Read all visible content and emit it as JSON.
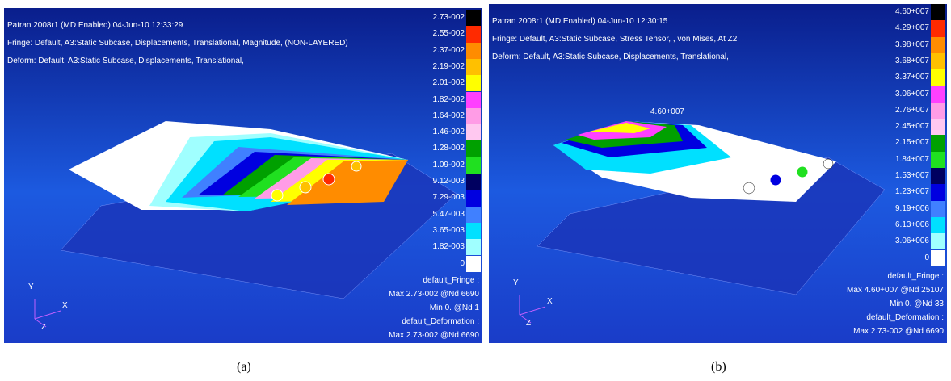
{
  "legend_colors": [
    "#000000",
    "#ff2a00",
    "#ff8c00",
    "#ffc000",
    "#ffff00",
    "#ff40ff",
    "#ff9ce6",
    "#ffc8f0",
    "#00a000",
    "#20e020",
    "#000060",
    "#0000e0",
    "#4080ff",
    "#00e0ff",
    "#a0ffff",
    "#ffffff"
  ],
  "panels": [
    {
      "header": [
        "Patran 2008r1 (MD Enabled) 04-Jun-10 12:33:29",
        "Fringe: Default, A3:Static Subcase, Displacements, Translational, Magnitude, (NON-LAYERED)",
        "Deform: Default, A3:Static Subcase, Displacements, Translational,"
      ],
      "legend": [
        "2.73-002",
        "2.55-002",
        "2.37-002",
        "2.19-002",
        "2.01-002",
        "1.82-002",
        "1.64-002",
        "1.46-002",
        "1.28-002",
        "1.09-002",
        "9.12-003",
        "7.29-003",
        "5.47-003",
        "3.65-003",
        "1.82-003",
        "0"
      ],
      "footer": [
        "default_Fringe :",
        "Max 2.73-002 @Nd 6690",
        "Min 0. @Nd 1",
        "default_Deformation :",
        "Max 2.73-002 @Nd 6690"
      ],
      "axes": [
        "Y",
        "X",
        "Z"
      ],
      "caption": "(a)"
    },
    {
      "header": [
        "Patran 2008r1 (MD Enabled) 04-Jun-10 12:30:15",
        "Fringe: Default, A3:Static Subcase, Stress Tensor, , von Mises, At Z2",
        "Deform: Default, A3:Static Subcase, Displacements, Translational,"
      ],
      "legend": [
        "4.60+007",
        "4.29+007",
        "3.98+007",
        "3.68+007",
        "3.37+007",
        "3.06+007",
        "2.76+007",
        "2.45+007",
        "2.15+007",
        "1.84+007",
        "1.53+007",
        "1.23+007",
        "9.19+006",
        "6.13+006",
        "3.06+006",
        "0"
      ],
      "footer": [
        "default_Fringe :",
        "Max 4.60+007 @Nd 25107",
        "Min 0. @Nd 33",
        "default_Deformation :",
        "Max 2.73-002 @Nd 6690"
      ],
      "axes": [
        "Y",
        "X",
        "Z"
      ],
      "annotation": "4.60+007",
      "caption": "(b)"
    }
  ]
}
